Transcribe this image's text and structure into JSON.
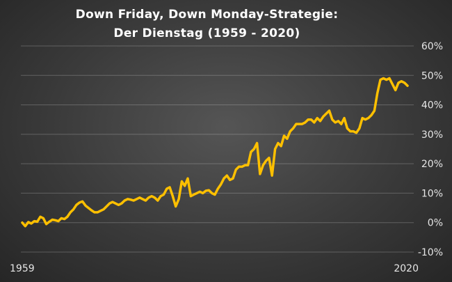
{
  "chart_data": {
    "type": "line",
    "title": "Down Friday, Down Monday-Strategie:",
    "subtitle": "Der Dienstag (1959 - 2020)",
    "x_start_label": "1959",
    "x_end_label": "2020",
    "ylim": [
      -10,
      60
    ],
    "y_ticks": [
      "-10%",
      "0%",
      "10%",
      "20%",
      "30%",
      "40%",
      "50%",
      "60%"
    ],
    "y_tick_values": [
      -10,
      0,
      10,
      20,
      30,
      40,
      50,
      60
    ],
    "grid": true,
    "line_color": "#FFC000",
    "values": [
      0.0,
      -1.2,
      0.2,
      -0.3,
      0.5,
      0.3,
      2.0,
      1.5,
      -0.5,
      0.3,
      1.0,
      0.8,
      0.5,
      1.5,
      1.2,
      2.0,
      3.5,
      4.5,
      6.0,
      6.8,
      7.2,
      5.8,
      5.0,
      4.2,
      3.5,
      3.5,
      4.0,
      4.5,
      5.5,
      6.5,
      7.0,
      6.5,
      6.0,
      6.5,
      7.5,
      8.0,
      7.8,
      7.5,
      8.0,
      8.5,
      8.0,
      7.5,
      8.5,
      9.0,
      8.5,
      7.5,
      9.0,
      9.5,
      11.5,
      12.0,
      9.0,
      5.5,
      8.0,
      14.0,
      12.5,
      15.0,
      9.0,
      9.5,
      10.0,
      10.5,
      10.0,
      10.8,
      11.0,
      10.0,
      9.5,
      11.5,
      13.0,
      15.0,
      16.0,
      14.5,
      15.0,
      18.0,
      19.0,
      19.0,
      19.5,
      19.5,
      24.0,
      25.0,
      27.0,
      16.5,
      19.5,
      21.0,
      22.0,
      16.0,
      25.0,
      27.0,
      26.0,
      29.5,
      28.5,
      31.0,
      32.0,
      33.5,
      33.5,
      33.5,
      34.0,
      35.0,
      35.0,
      34.0,
      35.5,
      34.5,
      36.0,
      37.0,
      38.0,
      35.0,
      34.0,
      34.5,
      33.5,
      35.5,
      32.0,
      31.0,
      31.0,
      30.5,
      32.0,
      35.5,
      35.0,
      35.5,
      36.5,
      38.0,
      44.0,
      48.5,
      49.0,
      48.5,
      49.0,
      47.0,
      45.0,
      47.5,
      48.0,
      47.5,
      46.5
    ]
  }
}
